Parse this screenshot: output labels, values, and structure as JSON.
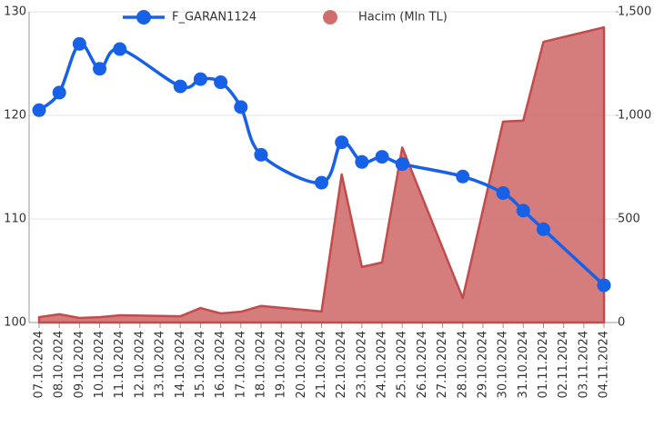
{
  "chart_data": {
    "type": "line",
    "categories": [
      "07.10.2024",
      "08.10.2024",
      "09.10.2024",
      "10.10.2024",
      "11.10.2024",
      "12.10.2024",
      "13.10.2024",
      "14.10.2024",
      "15.10.2024",
      "16.10.2024",
      "17.10.2024",
      "18.10.2024",
      "19.10.2024",
      "20.10.2024",
      "21.10.2024",
      "22.10.2024",
      "23.10.2024",
      "24.10.2024",
      "25.10.2024",
      "26.10.2024",
      "27.10.2024",
      "28.10.2024",
      "29.10.2024",
      "30.10.2024",
      "31.10.2024",
      "01.11.2024",
      "02.11.2024",
      "03.11.2024",
      "04.11.2024"
    ],
    "series": [
      {
        "name": "F_GARAN1124",
        "type": "line",
        "color": "#1760e8",
        "x": [
          "07.10.2024",
          "08.10.2024",
          "09.10.2024",
          "10.10.2024",
          "11.10.2024",
          "14.10.2024",
          "15.10.2024",
          "16.10.2024",
          "17.10.2024",
          "18.10.2024",
          "21.10.2024",
          "22.10.2024",
          "23.10.2024",
          "24.10.2024",
          "25.10.2024",
          "28.10.2024",
          "30.10.2024",
          "31.10.2024",
          "01.11.2024",
          "04.11.2024"
        ],
        "values": [
          120.5,
          122.2,
          126.9,
          124.5,
          126.4,
          122.8,
          123.5,
          123.2,
          120.8,
          116.2,
          113.5,
          117.4,
          115.5,
          116.0,
          115.3,
          114.1,
          112.5,
          110.8,
          109.0,
          103.6
        ]
      },
      {
        "name": "Hacim (Mln TL)",
        "type": "area",
        "axis": "y2",
        "color": "#d06e6e",
        "x": [
          "07.10.2024",
          "08.10.2024",
          "09.10.2024",
          "10.10.2024",
          "11.10.2024",
          "14.10.2024",
          "15.10.2024",
          "16.10.2024",
          "17.10.2024",
          "18.10.2024",
          "21.10.2024",
          "22.10.2024",
          "23.10.2024",
          "24.10.2024",
          "25.10.2024",
          "28.10.2024",
          "30.10.2024",
          "31.10.2024",
          "01.11.2024",
          "04.11.2024"
        ],
        "values": [
          26,
          40,
          22,
          26,
          35,
          30,
          70,
          44,
          52,
          80,
          53,
          715,
          268,
          290,
          845,
          118,
          970,
          975,
          1355,
          1425
        ]
      }
    ],
    "ylim": [
      100,
      130
    ],
    "yticks": [
      100,
      110,
      120,
      130
    ],
    "y2lim": [
      0,
      1500
    ],
    "y2ticks": [
      0,
      500,
      {
        "value": 1000,
        "label": "1,000"
      },
      {
        "value": 1500,
        "label": "1,500"
      }
    ],
    "grid": true
  }
}
